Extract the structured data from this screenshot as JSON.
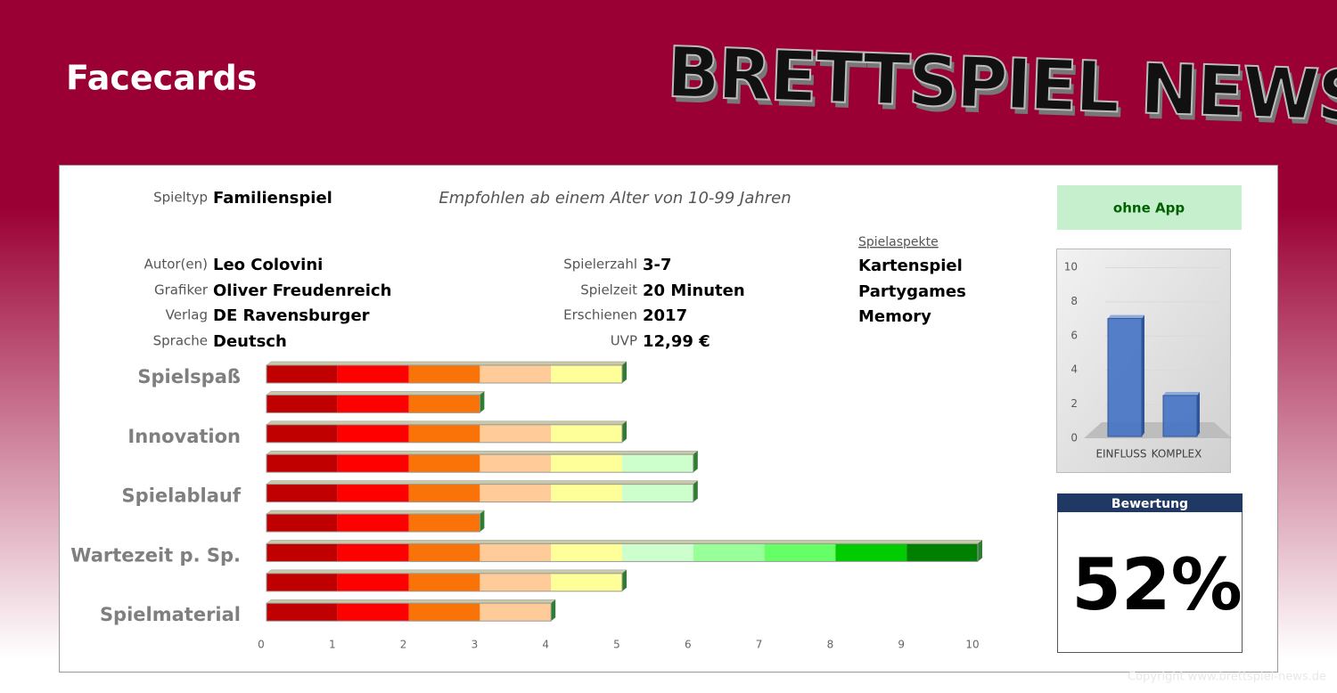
{
  "header": {
    "title": "Facecards",
    "logo": "BRETTSPIEL NEWS"
  },
  "info": {
    "spieltyp": {
      "label": "Spieltyp",
      "value": "Familienspiel"
    },
    "age": "Empfohlen ab einem Alter von 10-99 Jahren",
    "left": [
      {
        "label": "Autor(en)",
        "value": "Leo Colovini"
      },
      {
        "label": "Grafiker",
        "value": "Oliver Freudenreich"
      },
      {
        "label": "Verlag",
        "value": "DE Ravensburger"
      },
      {
        "label": "Sprache",
        "value": "Deutsch"
      }
    ],
    "middle": [
      {
        "label": "Spielerzahl",
        "value": "3-7"
      },
      {
        "label": "Spielzeit",
        "value": "20 Minuten"
      },
      {
        "label": "Erschienen",
        "value": "2017"
      },
      {
        "label": "UVP",
        "value": "12,99 €"
      }
    ],
    "aspects": {
      "title": "Spielaspekte",
      "items": [
        "Kartenspiel",
        "Partygames",
        "Memory"
      ]
    }
  },
  "app": "ohne App",
  "rating": {
    "label": "Bewertung",
    "value": "52%"
  },
  "copyright": "Copyright www.brettspiel-news.de",
  "chart_data": [
    {
      "type": "bar",
      "horizontal": true,
      "categories": [
        "Spielspaß",
        null,
        "Innovation",
        null,
        "Spielablauf",
        null,
        "Wartezeit p. Sp.",
        null,
        "Spielmaterial"
      ],
      "values": [
        5,
        3,
        5,
        6,
        6,
        3,
        10,
        5,
        4
      ],
      "segment_colors": [
        "#c00000",
        "#ff0000",
        "#f97308",
        "#ffcc99",
        "#ffff99",
        "#ccffcc",
        "#99ff99",
        "#66ff66",
        "#00cc00",
        "#008000"
      ],
      "xlim": [
        0,
        10
      ],
      "xticks": [
        0,
        1,
        2,
        3,
        4,
        5,
        6,
        7,
        8,
        9,
        10
      ]
    },
    {
      "type": "bar",
      "categories": [
        "EINFLUSS",
        "KOMPLEX"
      ],
      "values": [
        7,
        2.5
      ],
      "color": "#4472c4",
      "ylim": [
        0,
        10
      ],
      "yticks": [
        0,
        2,
        4,
        6,
        8,
        10
      ],
      "grid": true
    }
  ]
}
